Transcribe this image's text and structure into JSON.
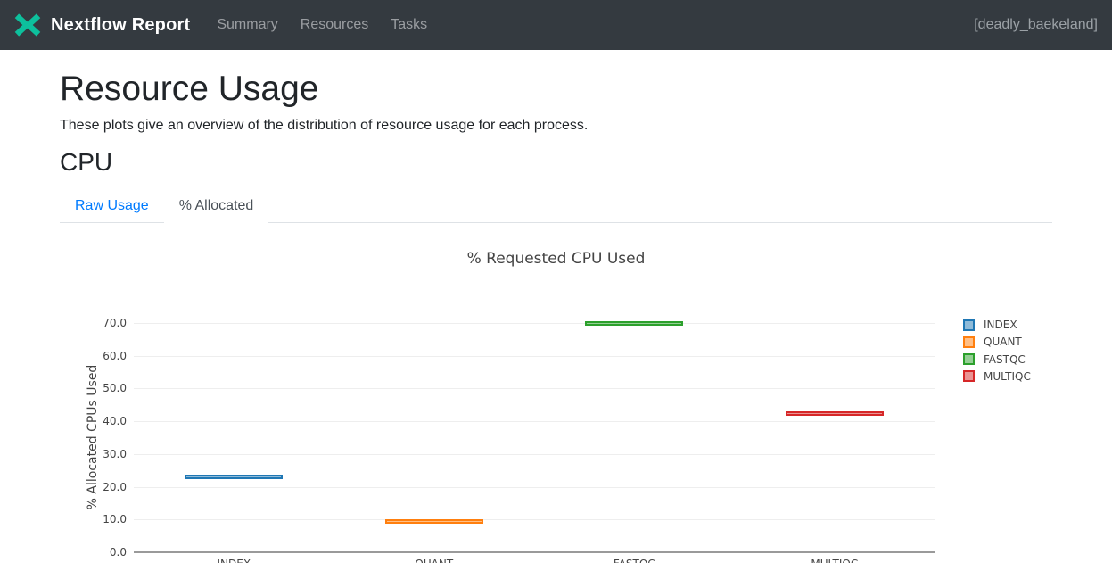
{
  "navbar": {
    "brand": "Nextflow Report",
    "items": [
      {
        "label": "Summary"
      },
      {
        "label": "Resources"
      },
      {
        "label": "Tasks"
      }
    ],
    "run_name": "[deadly_baekeland]",
    "colors": {
      "background": "#343a40",
      "brand_icon_teal": "#0dc09d",
      "link_gray": "#9a9da1"
    }
  },
  "page": {
    "title": "Resource Usage",
    "subtitle": "These plots give an overview of the distribution of resource usage for each process.",
    "section_heading": "CPU"
  },
  "tabs": [
    {
      "label": "Raw Usage",
      "active": false
    },
    {
      "label": "% Allocated",
      "active": true
    }
  ],
  "chart_data": {
    "type": "box",
    "title": "% Requested CPU Used",
    "xlabel": "",
    "ylabel": "% Allocated CPUs Used",
    "categories": [
      "INDEX",
      "QUANT",
      "FASTQC",
      "MULTIQC"
    ],
    "series": [
      {
        "name": "INDEX",
        "value": 22.9,
        "color": "#1f77b4",
        "fill": "#8fbbd9"
      },
      {
        "name": "QUANT",
        "value": 9.5,
        "color": "#ff7f0e",
        "fill": "#ffbf86"
      },
      {
        "name": "FASTQC",
        "value": 69.9,
        "color": "#2ca02c",
        "fill": "#95cf95"
      },
      {
        "name": "MULTIQC",
        "value": 42.5,
        "color": "#d62728",
        "fill": "#ea9393"
      }
    ],
    "yticks": [
      0,
      10,
      20,
      30,
      40,
      50,
      60,
      70
    ],
    "ytick_labels": [
      "0.0",
      "10.0",
      "20.0",
      "30.0",
      "40.0",
      "50.0",
      "60.0",
      "70.0"
    ],
    "ylim": [
      0,
      74
    ],
    "grid": true,
    "legend_position": "right"
  }
}
